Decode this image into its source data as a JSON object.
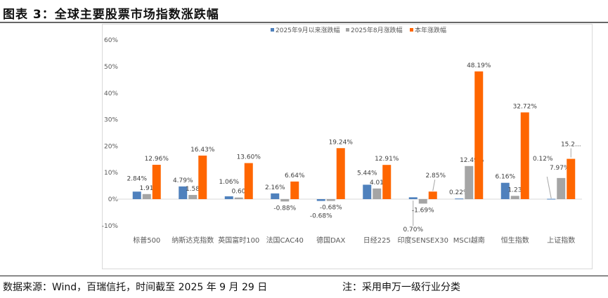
{
  "title": "图表 3：全球主要股票市场指数涨跌幅",
  "source": "数据来源：Wind，百瑞信托，时间截至 2025 年 9 月 29 日",
  "note": "注：采用申万一级行业分类",
  "chart_data": {
    "type": "bar",
    "title": "",
    "xlabel": "",
    "ylabel": "",
    "ylim": [
      -10,
      60
    ],
    "yticks": [
      "60%",
      "50%",
      "40%",
      "30%",
      "20%",
      "10%",
      "0%",
      "-10%"
    ],
    "ytick_values": [
      60,
      50,
      40,
      30,
      20,
      10,
      0,
      -10
    ],
    "grid": false,
    "legend": "top",
    "categories": [
      "标普500",
      "纳斯达克指数",
      "英国富时100",
      "法国CAC40",
      "德国DAX",
      "日经225",
      "印度SENSEX30",
      "MSCI越南",
      "恒生指数",
      "上证指数"
    ],
    "series": [
      {
        "name": "2025年9月以来涨跌幅",
        "color": "#4f81bd",
        "values": [
          2.84,
          4.79,
          1.06,
          2.16,
          -0.68,
          5.44,
          0.7,
          0.22,
          6.16,
          0.12
        ],
        "labels": [
          "2.84%",
          "4.79%",
          "1.06%",
          "2.16%",
          "-0.68%",
          "5.44%",
          "0.70%",
          "0.22%",
          "6.16%",
          "0.12%"
        ]
      },
      {
        "name": "2025年8月涨跌幅",
        "color": "#a5a5a5",
        "values": [
          1.91,
          1.58,
          0.6,
          -0.88,
          -0.68,
          4.01,
          -1.69,
          12.49,
          1.23,
          7.97
        ],
        "labels": [
          "1.91%",
          "1.58%",
          "0.60%",
          "-0.88%",
          "-0.68%",
          "4.01%",
          "-1.69%",
          "12.49%",
          "1.23%",
          "7.97%"
        ]
      },
      {
        "name": "本年涨跌幅",
        "color": "#ff6600",
        "values": [
          12.96,
          16.43,
          13.6,
          6.64,
          19.24,
          12.91,
          2.85,
          48.19,
          32.72,
          15.2
        ],
        "labels": [
          "12.96%",
          "16.43%",
          "13.60%",
          "6.64%",
          "19.24%",
          "12.91%",
          "2.85%",
          "48.19%",
          "32.72%",
          "15.2..."
        ]
      }
    ]
  }
}
